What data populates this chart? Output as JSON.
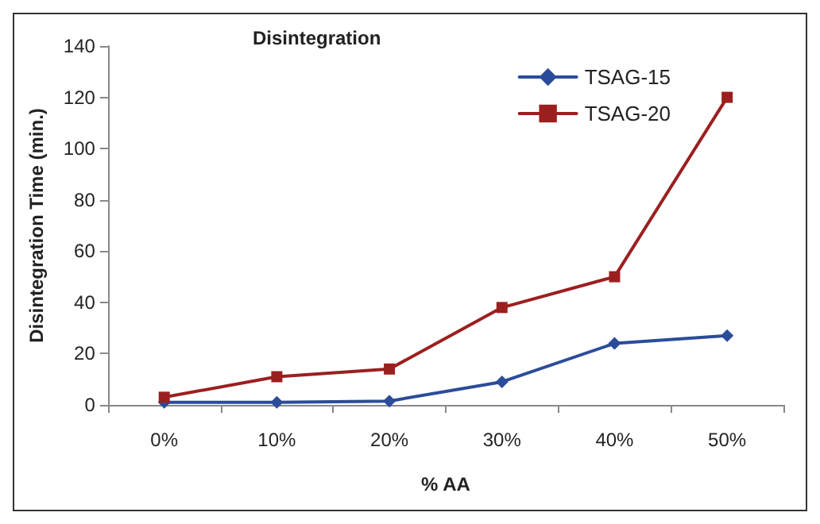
{
  "chart_data": {
    "type": "line",
    "title": "Disintegration",
    "xlabel": "% AA",
    "ylabel": "Disintegration Time (min.)",
    "categories": [
      "0%",
      "10%",
      "20%",
      "30%",
      "40%",
      "50%"
    ],
    "series": [
      {
        "name": "TSAG-15",
        "color": "#2b4c9a",
        "marker": "diamond",
        "values": [
          1,
          1,
          1.5,
          9,
          24,
          27
        ]
      },
      {
        "name": "TSAG-20",
        "color": "#9c1f1f",
        "marker": "square",
        "values": [
          3,
          11,
          14,
          38,
          50,
          120
        ]
      }
    ],
    "ylim": [
      0,
      140
    ],
    "yticks": [
      0,
      20,
      40,
      60,
      80,
      100,
      120,
      140
    ],
    "grid": false,
    "legend": "top right",
    "line_style": "solid"
  }
}
